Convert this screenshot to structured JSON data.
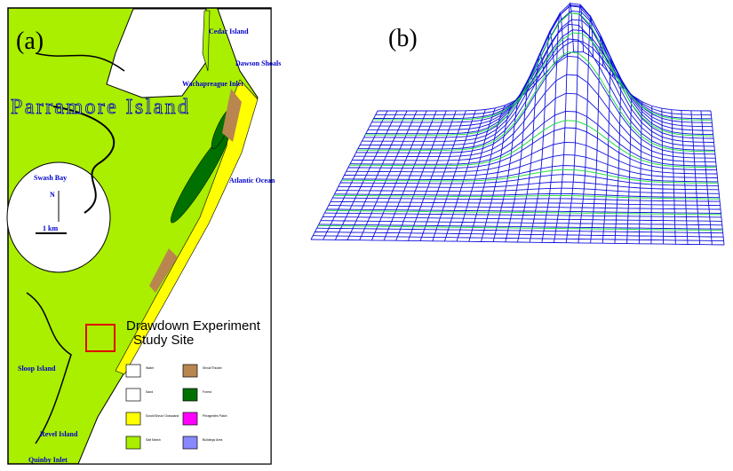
{
  "panels": {
    "a": "(a)",
    "b": "(b)"
  },
  "map": {
    "labels": [
      "Cedar Island",
      "Dawson Shoals",
      "Wachapreague Inlet",
      "Parramore Island",
      "Swash Bay",
      "Atlantic Ocean",
      "N",
      "1 km",
      "Sloop Island",
      "Revel Island",
      "Quinby Inlet"
    ],
    "study_site": [
      "Drawdown Experiment",
      "Study Site"
    ],
    "legend": [
      {
        "label": "Water",
        "color": "#ffffff"
      },
      {
        "label": "Sand",
        "color": "#ffffff"
      },
      {
        "label": "Scrub/Shrub/ Grassland",
        "color": "#ffff00"
      },
      {
        "label": "Salt Marsh",
        "color": "#aaee00"
      },
      {
        "label": "Shrub/Thicket",
        "color": "#b8864e"
      },
      {
        "label": "Forest",
        "color": "#007000"
      },
      {
        "label": "Phragmites Patch",
        "color": "#ff00ff"
      },
      {
        "label": "Buildings Area",
        "color": "#8888ff"
      }
    ]
  }
}
